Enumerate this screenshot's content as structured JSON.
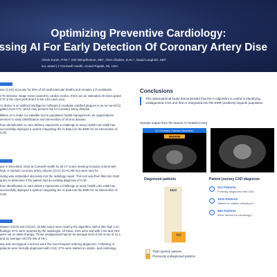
{
  "header": {
    "title_lines": [
      "Optimizing Preventive Cardiology:",
      "essing AI For Early Detection Of Coronary Artery Dise"
    ],
    "authors": "Alexis Kurek, P.hD.², Orit Wimpfheimer, MD¹, Oren Shalem, B.Sc.¹, David Langholz, MD²",
    "affiliation": "iva, Israel | 2 Corewell Health, Grand Rapids, MI, USA."
  },
  "left": {
    "sections": [
      {
        "top": 127,
        "paragraphs": [
          "ase (CAD) accounts for 50% of all cardiovascular deaths and remains a th worldwide.",
          "CTs minimize image noise caused by cardiac motion, there are an estimated 20 times gated CTs of the chest performed in the USA each year.",
          "AI device is an artificial intelligence software to evaluate calcified plaques in es on non-ECG gated chest CTs, which may present risk for coronary artery disease.",
          "bilities of AI make it a valuable tool in population health management, as organizations services to early identification and intervention of chronic disease.",
          "from identification to care delivery represents a challenge to many health care ealth has successfully deployed a system integrating the AI data into the EMR for nd intervention of CAD."
        ]
      },
      {
        "top": 238,
        "paragraphs": [
          "ase in December 2022 at Corewell Health for all CT scans meeting inclusion criteria with high or medium coronary artery calcium (CAC) (CAC>99 AU) were sent for",
          "inding was embedded discretely into the radiology report. This tool was then filed into chart query to determine if the patient had an existing diagnosis of CAD.",
          "from identification to care delivery represents a challenge to many health care ealth has successfully deployed a system integrating the AI data into the EMR for nd intervention of CAD."
        ]
      },
      {
        "top": 325,
        "paragraphs": [
          "etween 2/1/23 and 1/31/24, 32,550 scans were read by the algorithm, with 8,481 high CAC findings; 67% were reported by the radiologist. Of these, 64% were sed with CAD and 79% were not on statin therapy. Those undiagnosed had an an average End of Life score of 11.2, and an average ASCVD risk of 19.1.",
          "ase and oncological concerns were the most frequent ordering diagnoses. Following of patients were formally diagnosed with CAD, 27% were started on statins, and cardiology."
        ]
      }
    ]
  },
  "conclusions": {
    "heading": "Conclusions",
    "text": "This observational study demonstrated that the AI algorithm is useful in identifying undiagnosed CAD and that AI integrated into the EMR positively impacts population"
  },
  "sample": {
    "caption": "Sample output from the Nanox AI  HealthCCSng",
    "panel_title": "AI Coronary Calcium Detection",
    "level": "MEDIUM"
  },
  "diagnosed": {
    "heading": "Diagnosed patients",
    "bars": [
      {
        "name": "Total reported patients",
        "value": 1624,
        "color": "#f3ead2"
      },
      {
        "name": "Previously undiagnosed patients",
        "value": 312,
        "color": "#f5a623"
      }
    ]
  },
  "journey": {
    "heading": "Patient journey CAD diagnosis",
    "items": [
      {
        "count": "312 Patients",
        "desc": "Formally diagnosed with CAD"
      },
      {
        "count": "1024 Patients",
        "desc": "Started on statins following N"
      },
      {
        "count": "682 Patients",
        "desc": "Were referred to cardiology f"
      }
    ]
  }
}
